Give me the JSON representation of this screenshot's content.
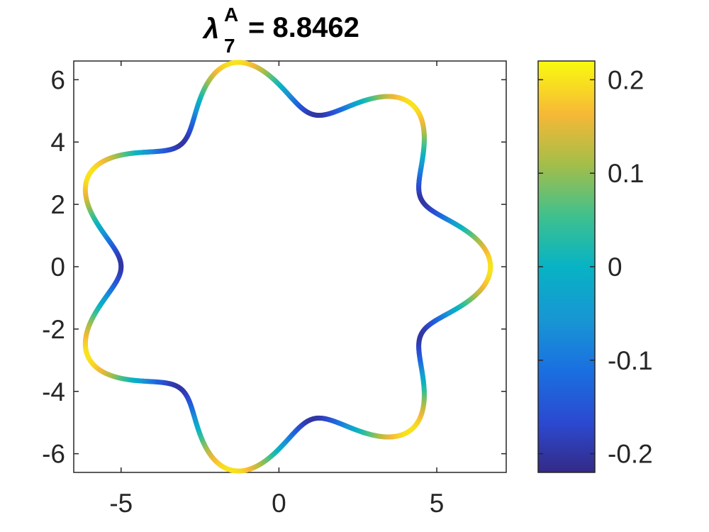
{
  "chart_data": {
    "type": "line",
    "title": {
      "symbol": "λ",
      "superscript": "A",
      "subscript": "7",
      "value_text": "= 8.8462"
    },
    "xlabel": "",
    "ylabel": "",
    "xlim": [
      -6.5,
      7.2
    ],
    "ylim": [
      -6.6,
      6.6
    ],
    "x_ticks": [
      -5,
      0,
      5
    ],
    "x_tick_labels": [
      "-5",
      "0",
      "5"
    ],
    "y_ticks": [
      -6,
      -4,
      -2,
      0,
      2,
      4,
      6
    ],
    "y_tick_labels": [
      "-6",
      "-4",
      "-2",
      "0",
      "2",
      "4",
      "6"
    ],
    "grid": false,
    "curve": {
      "description_kind": "closed polar curve colored by value",
      "mean_radius": 5.85,
      "radial_amplitude": 0.85,
      "lobes": 7,
      "phase_deg": 0,
      "color_value_amplitude": 0.2
    },
    "colorbar": {
      "colormap": "parula",
      "range": [
        -0.22,
        0.22
      ],
      "ticks": [
        0.2,
        0.1,
        0,
        -0.1,
        -0.2
      ],
      "tick_labels": [
        "0.2",
        "0.1",
        "0",
        "-0.1",
        "-0.2"
      ]
    }
  }
}
